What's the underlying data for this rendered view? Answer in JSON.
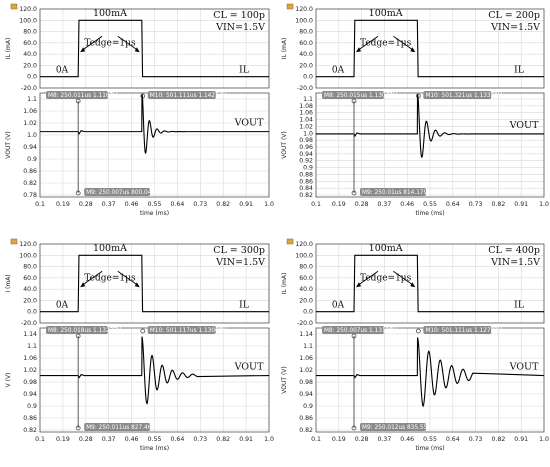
{
  "chart_data": [
    {
      "type": "line",
      "CL": "CL = 100p",
      "VIN": "VIN=1.5V",
      "pulse_high": "100mA",
      "pulse_low": "0A",
      "edge_label": "Tedge=1µs",
      "trace_top": "IL",
      "trace_bottom": "VOUT",
      "ylabel_top": "IL (mA)",
      "ylabel_bottom": "VOUT (V)",
      "xlabel": "time (ms)",
      "x_ticks": [
        "0.1",
        "0.19",
        "0.28",
        "0.37",
        "0.46",
        "0.55",
        "0.64",
        "0.73",
        "0.82",
        "0.91",
        "1.0"
      ],
      "xlim": [
        0.1,
        1.0
      ],
      "top_ticks": [
        "120.0",
        "100.0",
        "80.0",
        "60.0",
        "40.0",
        "20.0",
        "0.0",
        "-20.0"
      ],
      "top_ylim": [
        -20,
        120
      ],
      "bottom_ticks": [
        "1.1",
        "1.06",
        "1.02",
        "1.0",
        "0.94",
        "0.9",
        "0.86",
        "0.82",
        "0.78"
      ],
      "bottom_ylim": [
        0.78,
        1.13
      ],
      "steady": 1.0,
      "pulse": [
        0.25,
        0.5
      ],
      "current": {
        "low": 0,
        "high": 100
      },
      "markers": [
        {
          "label": "M8: 250.011us 1.1169V",
          "x": 0.25,
          "y": 1.1169
        },
        {
          "label": "M10: 501.111us 1.14274V",
          "x": 0.501,
          "y": 1.14274
        },
        {
          "label": "M9: 250.007us 800.04mV",
          "x": 0.25,
          "y": 0.80004
        }
      ],
      "ringing": {
        "amp": 0.142,
        "period": 0.03,
        "decay": 0.022
      }
    },
    {
      "type": "line",
      "CL": "CL = 200p",
      "VIN": "VIN=1.5V",
      "pulse_high": "100mA",
      "pulse_low": "0A",
      "edge_label": "Tedge=1µs",
      "trace_top": "IL",
      "trace_bottom": "VOUT",
      "ylabel_top": "IL (mA)",
      "ylabel_bottom": "VOUT (V)",
      "xlabel": "time (ms)",
      "x_ticks": [
        "0.1",
        "0.19",
        "0.28",
        "0.37",
        "0.46",
        "0.55",
        "0.64",
        "0.73",
        "0.82",
        "0.91",
        "1.0"
      ],
      "xlim": [
        0.1,
        1.0
      ],
      "top_ticks": [
        "120.0",
        "100.0",
        "80.0",
        "60.0",
        "40.0",
        "20.0",
        "0.0",
        "-20.0"
      ],
      "top_ylim": [
        -20,
        120
      ],
      "bottom_ticks": [
        "1.1",
        "1.08",
        "1.06",
        "1.04",
        "1.02",
        "1.0",
        "0.98",
        "0.96",
        "0.94",
        "0.92",
        "0.9",
        "0.88",
        "0.86",
        "0.84",
        "0.82"
      ],
      "bottom_ylim": [
        0.8,
        1.13
      ],
      "steady": 1.0,
      "pulse": [
        0.25,
        0.5
      ],
      "current": {
        "low": 0,
        "high": 100
      },
      "markers": [
        {
          "label": "M8: 250.015us 1.13079V",
          "x": 0.25,
          "y": 1.13079
        },
        {
          "label": "M10: 501.321us 1.13359V",
          "x": 0.501,
          "y": 1.13359
        },
        {
          "label": "M9: 250.01us 814.179mV",
          "x": 0.25,
          "y": 0.814179
        }
      ],
      "ringing": {
        "amp": 0.133,
        "period": 0.036,
        "decay": 0.03
      }
    },
    {
      "type": "line",
      "CL": "CL = 300p",
      "VIN": "VIN=1.5V",
      "pulse_high": "100mA",
      "pulse_low": "0A",
      "edge_label": "Tedge=1µs",
      "trace_top": "IL",
      "trace_bottom": "VOUT",
      "ylabel_top": "I (mA)",
      "ylabel_bottom": "V (V)",
      "xlabel": "time (ms)",
      "x_ticks": [
        "0.1",
        "0.19",
        "0.28",
        "0.37",
        "0.46",
        "0.55",
        "0.64",
        "0.73",
        "0.82",
        "0.91",
        "1.0"
      ],
      "xlim": [
        0.1,
        1.0
      ],
      "top_ticks": [
        "120.0",
        "100.0",
        "80.0",
        "60.0",
        "40.0",
        "20.0",
        "0.0",
        "-20.0"
      ],
      "top_ylim": [
        -20,
        120
      ],
      "bottom_ticks": [
        "1.14",
        "1.1",
        "1.06",
        "1.02",
        "0.98",
        "0.94",
        "0.9",
        "0.86",
        "0.82"
      ],
      "bottom_ylim": [
        0.81,
        1.16
      ],
      "steady": 1.0,
      "pulse": [
        0.25,
        0.5
      ],
      "current": {
        "low": 0,
        "high": 100
      },
      "markers": [
        {
          "label": "M8: 250.018us 1.13277V",
          "x": 0.25,
          "y": 1.13277
        },
        {
          "label": "M10: 501.117us 1.13068V",
          "x": 0.501,
          "y": 1.13068
        },
        {
          "label": "M9: 250.011us 827.461mV",
          "x": 0.25,
          "y": 0.827461
        }
      ],
      "ringing": {
        "amp": 0.131,
        "period": 0.04,
        "decay": 0.06
      }
    },
    {
      "type": "line",
      "CL": "CL = 400p",
      "VIN": "VIN=1.5V",
      "pulse_high": "100mA",
      "pulse_low": "0A",
      "edge_label": "Tedge=1µs",
      "trace_top": "IL",
      "trace_bottom": "VOUT",
      "ylabel_top": "IL (mA)",
      "ylabel_bottom": "VOUT (V)",
      "xlabel": "time (ms)",
      "x_ticks": [
        "0.1",
        "0.19",
        "0.28",
        "0.37",
        "0.46",
        "0.55",
        "0.64",
        "0.73",
        "0.82",
        "0.91",
        "1.0"
      ],
      "xlim": [
        0.1,
        1.0
      ],
      "top_ticks": [
        "120.0",
        "100.0",
        "80.0",
        "60.0",
        "40.0",
        "20.0",
        "0.0",
        "-20.0"
      ],
      "top_ylim": [
        -20,
        120
      ],
      "bottom_ticks": [
        "1.14",
        "1.1",
        "1.06",
        "1.02",
        "0.98",
        "0.94",
        "0.9",
        "0.86",
        "0.82"
      ],
      "bottom_ylim": [
        0.81,
        1.16
      ],
      "steady": 1.0,
      "pulse": [
        0.25,
        0.5
      ],
      "current": {
        "low": 0,
        "high": 100
      },
      "markers": [
        {
          "label": "M8: 250.007us 1.13118V",
          "x": 0.25,
          "y": 1.13118
        },
        {
          "label": "M10: 501.111us 1.12782V",
          "x": 0.501,
          "y": 1.12782
        },
        {
          "label": "M9: 250.012us 835.555mV",
          "x": 0.25,
          "y": 0.835555
        }
      ],
      "ringing": {
        "amp": 0.128,
        "period": 0.045,
        "decay": 0.1
      }
    }
  ]
}
